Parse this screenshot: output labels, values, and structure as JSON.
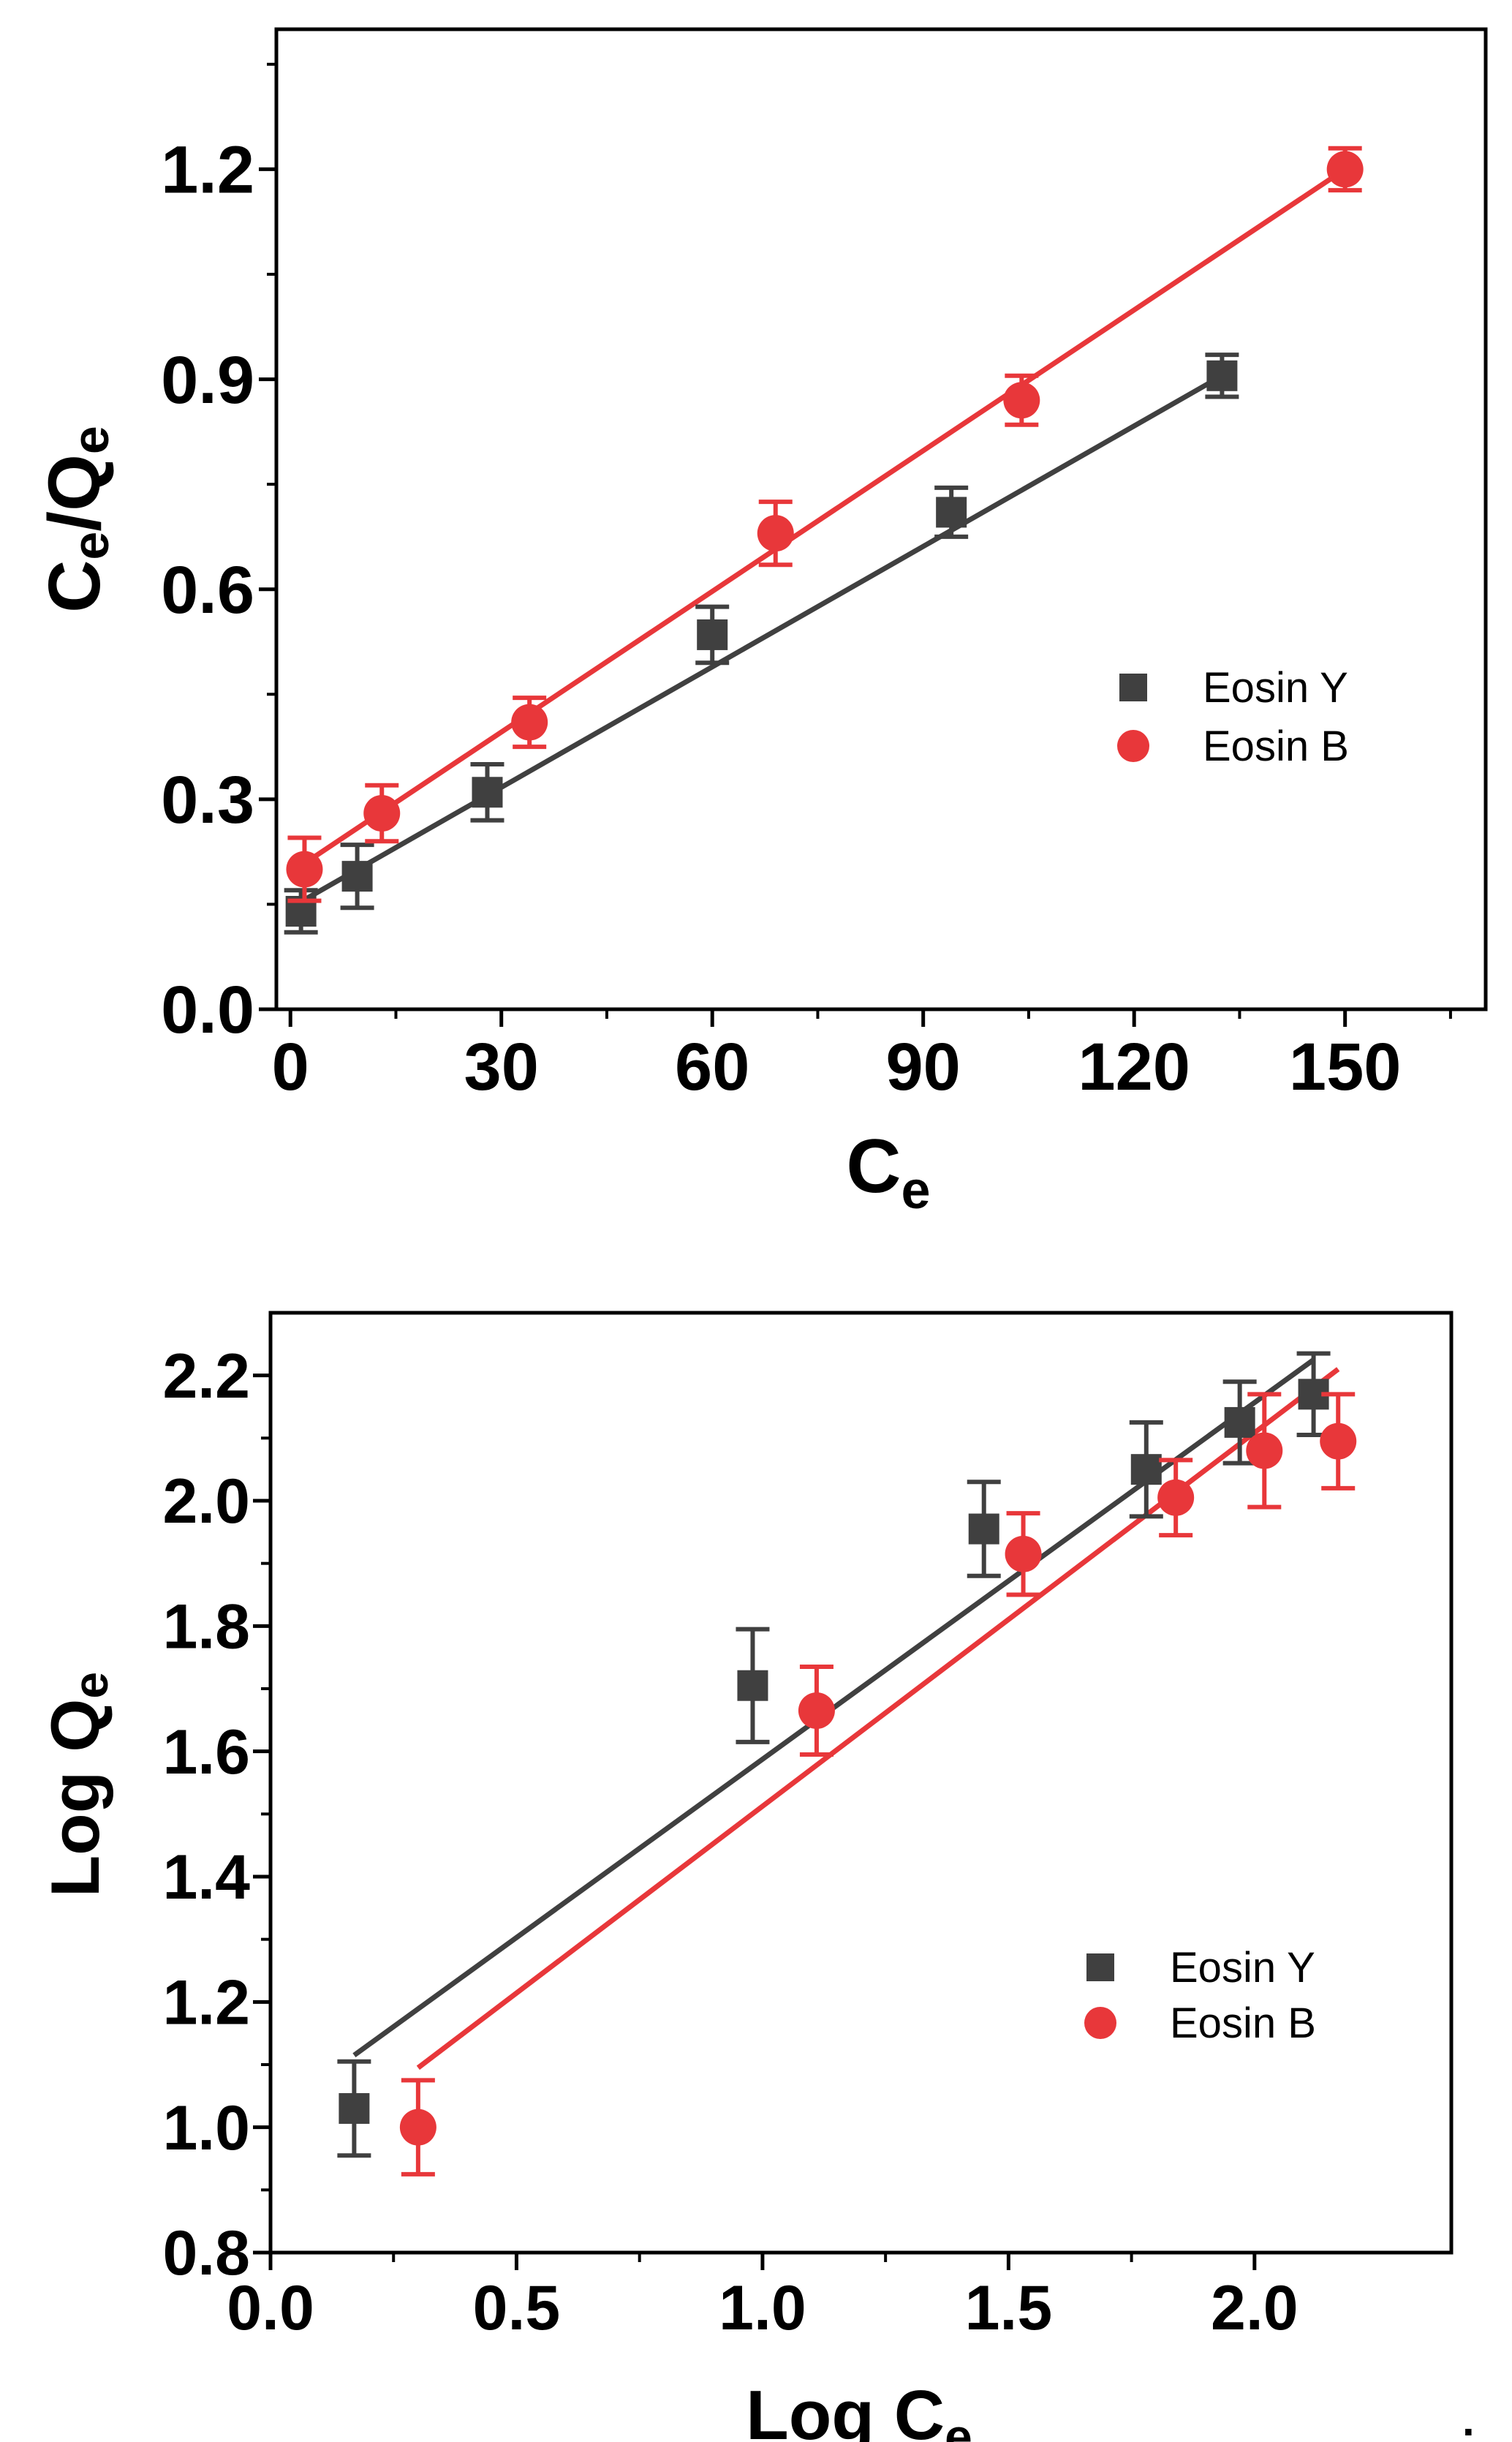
{
  "colors": {
    "eosin_y": "#404040",
    "eosin_b": "#e8373a",
    "axis": "#000000"
  },
  "chart_data": [
    {
      "type": "scatter",
      "xlabel": "C",
      "xlabel_sub": "e",
      "ylabel": "C",
      "ylabel_sub1": "e",
      "ylabel_mid": "/Q",
      "ylabel_sub2": "e",
      "xlim": [
        -2,
        170
      ],
      "ylim": [
        0,
        1.4
      ],
      "xticks": [
        0,
        30,
        60,
        90,
        120,
        150
      ],
      "xtick_labels": [
        "0",
        "30",
        "60",
        "90",
        "120",
        "150"
      ],
      "yticks": [
        0.0,
        0.3,
        0.6,
        0.9,
        1.2
      ],
      "ytick_labels": [
        "0.0",
        "0.3",
        "0.6",
        "0.9",
        "1.2"
      ],
      "legend": [
        "Eosin Y",
        "Eosin B"
      ],
      "legend_position": "right",
      "series": [
        {
          "name": "Eosin Y",
          "marker": "square",
          "x": [
            1.5,
            9.5,
            28,
            60,
            94,
            132.5
          ],
          "y": [
            0.14,
            0.19,
            0.31,
            0.535,
            0.71,
            0.905
          ],
          "err": [
            0.03,
            0.045,
            0.04,
            0.04,
            0.035,
            0.03
          ],
          "fit": [
            [
              0,
              0.145
            ],
            [
              132.5,
              0.905
            ]
          ]
        },
        {
          "name": "Eosin B",
          "marker": "circle",
          "x": [
            2,
            13,
            34,
            69,
            104,
            150
          ],
          "y": [
            0.2,
            0.28,
            0.41,
            0.68,
            0.87,
            1.2
          ],
          "err": [
            0.045,
            0.04,
            0.035,
            0.045,
            0.035,
            0.03
          ],
          "fit": [
            [
              0,
              0.195
            ],
            [
              150,
              1.2
            ]
          ]
        }
      ]
    },
    {
      "type": "scatter",
      "xlabel": "Log C",
      "xlabel_sub": "e",
      "ylabel": "Log Q",
      "ylabel_sub": "e",
      "xlim": [
        0,
        2.4
      ],
      "ylim": [
        0.8,
        2.3
      ],
      "xticks": [
        0.0,
        0.5,
        1.0,
        1.5,
        2.0
      ],
      "xtick_labels": [
        "0.0",
        "0.5",
        "1.0",
        "1.5",
        "2.0"
      ],
      "yticks": [
        0.8,
        1.0,
        1.2,
        1.4,
        1.6,
        1.8,
        2.0,
        2.2
      ],
      "ytick_labels": [
        "0.8",
        "1.0",
        "1.2",
        "1.4",
        "1.6",
        "1.8",
        "2.0",
        "2.2"
      ],
      "legend": [
        "Eosin Y",
        "Eosin B"
      ],
      "legend_position": "right",
      "series": [
        {
          "name": "Eosin Y",
          "marker": "square",
          "x": [
            0.17,
            0.98,
            1.45,
            1.78,
            1.97,
            2.12
          ],
          "y": [
            1.03,
            1.705,
            1.955,
            2.05,
            2.125,
            2.17
          ],
          "err": [
            0.075,
            0.09,
            0.075,
            0.075,
            0.065,
            0.065
          ],
          "fit": [
            [
              0.17,
              1.115
            ],
            [
              2.12,
              2.225
            ]
          ]
        },
        {
          "name": "Eosin B",
          "marker": "circle",
          "x": [
            0.3,
            1.11,
            1.53,
            1.84,
            2.02,
            2.17
          ],
          "y": [
            1.0,
            1.665,
            1.915,
            2.005,
            2.08,
            2.095
          ],
          "err": [
            0.075,
            0.07,
            0.065,
            0.06,
            0.09,
            0.075
          ],
          "fit": [
            [
              0.3,
              1.095
            ],
            [
              2.17,
              2.21
            ]
          ]
        }
      ]
    }
  ],
  "footnote": "."
}
